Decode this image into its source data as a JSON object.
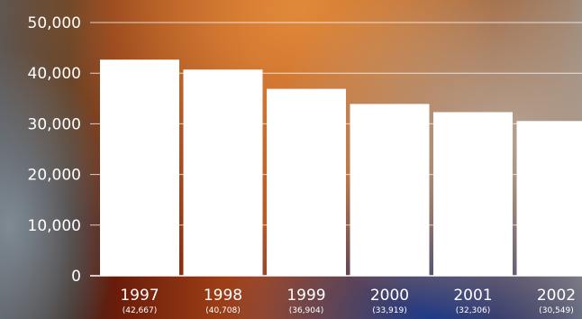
{
  "chart_data": {
    "type": "bar",
    "categories": [
      "1997",
      "1998",
      "1999",
      "2000",
      "2001",
      "2002"
    ],
    "values": [
      42667,
      40708,
      36904,
      33919,
      32306,
      30549
    ],
    "data_labels": [
      "(42,667)",
      "(40,708)",
      "(36,904)",
      "(33,919)",
      "(32,306)",
      "(30,549)"
    ],
    "yticks": [
      0,
      10000,
      20000,
      30000,
      40000,
      50000
    ],
    "ytick_labels": [
      "0",
      "10,000",
      "20,000",
      "30,000",
      "40,000",
      "50,000"
    ],
    "ylim": [
      0,
      50000
    ],
    "grid": true,
    "colors": {
      "bar": "#ffffff",
      "text": "#ffffff"
    }
  }
}
